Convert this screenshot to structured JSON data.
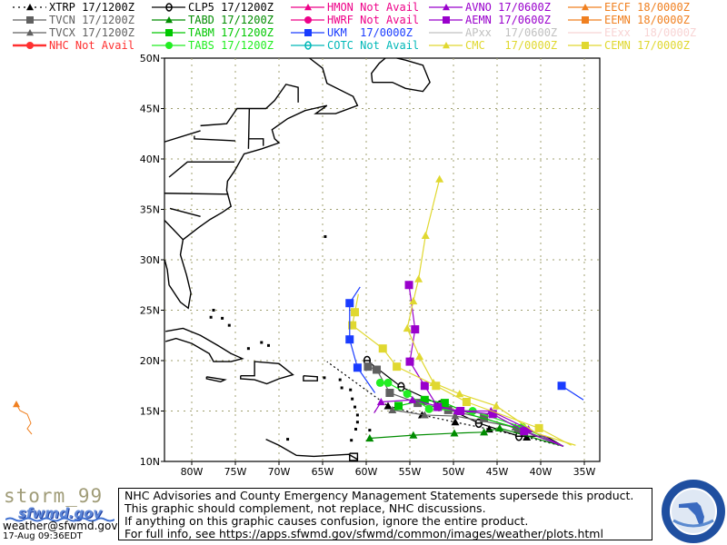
{
  "legend": [
    {
      "id": "XTRP",
      "label": "XTRP 17/1200Z",
      "color": "#000000",
      "marker": "triangle",
      "dashed": true
    },
    {
      "id": "TVCN",
      "label": "TVCN 17/1200Z",
      "color": "#606060",
      "marker": "square"
    },
    {
      "id": "TVCX",
      "label": "TVCX 17/1200Z",
      "color": "#606060",
      "marker": "triangle"
    },
    {
      "id": "NHC",
      "label": "NHC Not Avail",
      "color": "#ff3030",
      "marker": "circle"
    },
    {
      "id": "CLP5",
      "label": "CLP5 17/1200Z",
      "color": "#000000",
      "marker": "theta"
    },
    {
      "id": "TABD",
      "label": "TABD 17/1200Z",
      "color": "#008c00",
      "marker": "triangle"
    },
    {
      "id": "TABM",
      "label": "TABM 17/1200Z",
      "color": "#00c800",
      "marker": "square"
    },
    {
      "id": "TABS",
      "label": "TABS 17/1200Z",
      "color": "#22ee22",
      "marker": "circle"
    },
    {
      "id": "HMON",
      "label": "HMON Not Avail",
      "color": "#ee0088",
      "marker": "triangle"
    },
    {
      "id": "HWRF",
      "label": "HWRF Not Avail",
      "color": "#ee0088",
      "marker": "circle"
    },
    {
      "id": "UKM",
      "label": "UKM  17/0000Z",
      "color": "#1a3cff",
      "marker": "square"
    },
    {
      "id": "COTC",
      "label": "COTC Not Avail",
      "color": "#00b8b8",
      "marker": "theta"
    },
    {
      "id": "AVNO",
      "label": "AVNO 17/0600Z",
      "color": "#9900cc",
      "marker": "triangle"
    },
    {
      "id": "AEMN",
      "label": "AEMN 17/0600Z",
      "color": "#9900cc",
      "marker": "square"
    },
    {
      "id": "APxx",
      "label": "APxx  17/0600Z",
      "color": "#c0c0c0",
      "marker": "none"
    },
    {
      "id": "CMC",
      "label": "CMC   17/0000Z",
      "color": "#e0d830",
      "marker": "triangle"
    },
    {
      "id": "EECF",
      "label": "EECF 18/0000Z",
      "color": "#f08020",
      "marker": "triangle"
    },
    {
      "id": "EEMN",
      "label": "EEMN 18/0000Z",
      "color": "#f08020",
      "marker": "square"
    },
    {
      "id": "EExx",
      "label": "EExx  18/0000Z",
      "color": "#f8d4d4",
      "marker": "none"
    },
    {
      "id": "CEMN",
      "label": "CEMN 17/0000Z",
      "color": "#e0d830",
      "marker": "square"
    }
  ],
  "map": {
    "lon_range": [
      -83.1,
      -33.2
    ],
    "lat_range": [
      10,
      50
    ],
    "lon_ticks": [
      {
        "v": -80,
        "label": "80W"
      },
      {
        "v": -75,
        "label": "75W"
      },
      {
        "v": -70,
        "label": "70W"
      },
      {
        "v": -65,
        "label": "65W"
      },
      {
        "v": -60,
        "label": "60W"
      },
      {
        "v": -55,
        "label": "55W"
      },
      {
        "v": -50,
        "label": "50W"
      },
      {
        "v": -45,
        "label": "45W"
      },
      {
        "v": -40,
        "label": "40W"
      },
      {
        "v": -35,
        "label": "35W"
      }
    ],
    "lat_ticks": [
      {
        "v": 10,
        "label": "10N"
      },
      {
        "v": 15,
        "label": "15N"
      },
      {
        "v": 20,
        "label": "20N"
      },
      {
        "v": 25,
        "label": "25N"
      },
      {
        "v": 30,
        "label": "30N"
      },
      {
        "v": 35,
        "label": "35N"
      },
      {
        "v": 40,
        "label": "40N"
      },
      {
        "v": 45,
        "label": "45N"
      },
      {
        "v": 50,
        "label": "50N"
      }
    ],
    "grid_color": "#a0a070"
  },
  "chart_data": {
    "type": "line",
    "xlabel": "",
    "ylabel": "",
    "xlim": [
      -83.1,
      -33.2
    ],
    "ylim": [
      10,
      50
    ],
    "grid": true,
    "series": [
      {
        "name": "XTRP",
        "points": [
          [
            -37.4,
            11.5
          ],
          [
            -41.6,
            12.4
          ],
          [
            -45.9,
            13.2
          ],
          [
            -49.8,
            13.9
          ],
          [
            -53.6,
            14.6
          ],
          [
            -57.5,
            15.5
          ],
          [
            -64.5,
            19.9
          ]
        ],
        "markers": [
          1,
          2,
          3,
          4,
          5
        ]
      },
      {
        "name": "CLP5",
        "points": [
          [
            -37.4,
            11.5
          ],
          [
            -39.4,
            12.5
          ],
          [
            -42.5,
            12.5
          ],
          [
            -47.1,
            13.8
          ],
          [
            -51.5,
            15.6
          ],
          [
            -56.0,
            17.4
          ],
          [
            -59.9,
            20.0
          ]
        ],
        "markers": [
          2,
          3,
          4,
          5,
          6
        ]
      },
      {
        "name": "TVCN",
        "points": [
          [
            -37.4,
            11.5
          ],
          [
            -42.6,
            13.2
          ],
          [
            -46.5,
            14.3
          ],
          [
            -50.6,
            15.1
          ],
          [
            -54.1,
            15.8
          ],
          [
            -57.3,
            16.8
          ],
          [
            -58.8,
            19.1
          ],
          [
            -59.8,
            19.4
          ]
        ],
        "markers": [
          1,
          2,
          3,
          4,
          5,
          6,
          7
        ]
      },
      {
        "name": "TVCX",
        "points": [
          [
            -37.4,
            11.5
          ],
          [
            -42.9,
            13.4
          ],
          [
            -49.8,
            14.5
          ],
          [
            -53.3,
            14.6
          ],
          [
            -57.0,
            15.1
          ]
        ],
        "markers": [
          1,
          2,
          3,
          4
        ]
      },
      {
        "name": "TABD",
        "points": [
          [
            -37.4,
            11.5
          ],
          [
            -44.7,
            13.3
          ],
          [
            -46.5,
            12.9
          ],
          [
            -49.9,
            12.8
          ],
          [
            -54.6,
            12.6
          ],
          [
            -59.6,
            12.3
          ]
        ],
        "markers": [
          1,
          2,
          3,
          4,
          5
        ]
      },
      {
        "name": "TABM",
        "points": [
          [
            -37.4,
            11.5
          ],
          [
            -43.0,
            13.4
          ],
          [
            -47.5,
            14.5
          ],
          [
            -51.0,
            15.8
          ],
          [
            -53.3,
            16.1
          ],
          [
            -56.3,
            15.5
          ]
        ],
        "markers": [
          3,
          4,
          5
        ]
      },
      {
        "name": "TABS",
        "points": [
          [
            -37.4,
            11.5
          ],
          [
            -42.1,
            13.4
          ],
          [
            -47.8,
            15.0
          ],
          [
            -52.8,
            15.2
          ],
          [
            -55.3,
            16.7
          ],
          [
            -57.5,
            17.8
          ],
          [
            -58.4,
            17.8
          ]
        ],
        "markers": [
          1,
          2,
          3,
          4,
          5,
          6
        ]
      },
      {
        "name": "AVNO",
        "points": [
          [
            -37.4,
            11.5
          ],
          [
            -41.4,
            13.2
          ],
          [
            -45.7,
            15.0
          ],
          [
            -49.6,
            15.0
          ],
          [
            -54.7,
            16.1
          ],
          [
            -58.3,
            15.9
          ],
          [
            -59.1,
            14.8
          ]
        ],
        "markers": [
          1,
          2,
          3,
          4,
          5
        ]
      },
      {
        "name": "AEMN",
        "points": [
          [
            -37.4,
            11.5
          ],
          [
            -41.9,
            13.0
          ],
          [
            -45.5,
            14.7
          ],
          [
            -49.2,
            15.0
          ],
          [
            -51.8,
            15.4
          ],
          [
            -53.3,
            17.5
          ],
          [
            -55.0,
            19.9
          ],
          [
            -54.4,
            23.1
          ],
          [
            -55.1,
            27.5
          ]
        ],
        "markers": [
          1,
          2,
          3,
          4,
          5,
          6,
          7,
          8
        ]
      },
      {
        "name": "CMC",
        "points": [
          [
            -36.0,
            11.6
          ],
          [
            -40.5,
            12.8
          ],
          [
            -45.1,
            15.5
          ],
          [
            -49.3,
            16.7
          ],
          [
            -52.3,
            17.8
          ],
          [
            -53.9,
            20.4
          ],
          [
            -55.3,
            23.2
          ],
          [
            -54.6,
            25.9
          ],
          [
            -54.0,
            28.1
          ],
          [
            -53.2,
            32.4
          ],
          [
            -51.6,
            38.0
          ]
        ],
        "markers": [
          2,
          3,
          4,
          5,
          6,
          7,
          8,
          9,
          10
        ]
      },
      {
        "name": "CEMN",
        "points": [
          [
            -36.5,
            11.6
          ],
          [
            -40.2,
            13.3
          ],
          [
            -48.5,
            15.9
          ],
          [
            -52.0,
            17.5
          ],
          [
            -56.5,
            19.4
          ],
          [
            -58.1,
            21.2
          ],
          [
            -61.6,
            23.5
          ],
          [
            -61.3,
            24.8
          ],
          [
            -60.9,
            26.6
          ]
        ],
        "markers": [
          1,
          2,
          3,
          4,
          5,
          6,
          7
        ]
      },
      {
        "name": "UKM",
        "points": [
          [
            -59.0,
            16.8
          ],
          [
            -61.0,
            19.3
          ],
          [
            -61.9,
            22.1
          ],
          [
            -61.9,
            25.7
          ],
          [
            -60.7,
            27.3
          ]
        ],
        "markers": [
          1,
          2,
          3
        ]
      },
      {
        "name": "UKM",
        "points": [
          [
            -37.6,
            17.5
          ],
          [
            -35.1,
            16.1
          ]
        ],
        "markers": [
          0
        ]
      }
    ]
  },
  "footer": {
    "id": "storm_99",
    "site": "sfwmd.gov",
    "email": "weather@sfwmd.gov",
    "timestamp": "17-Aug 09:36EDT",
    "lines": [
      "NHC Advisories and County Emergency Management Statements supersede this product.",
      "This graphic should complement, not replace, NHC discussions.",
      "If anything on this graphic causes confusion, ignore the entire product.",
      "For full info, see  https://apps.sfwmd.gov/sfwmd/common/images/weather/plots.html"
    ],
    "seal_text": "SOUTH FLORIDA WATER MANAGEMENT DISTRICT"
  }
}
